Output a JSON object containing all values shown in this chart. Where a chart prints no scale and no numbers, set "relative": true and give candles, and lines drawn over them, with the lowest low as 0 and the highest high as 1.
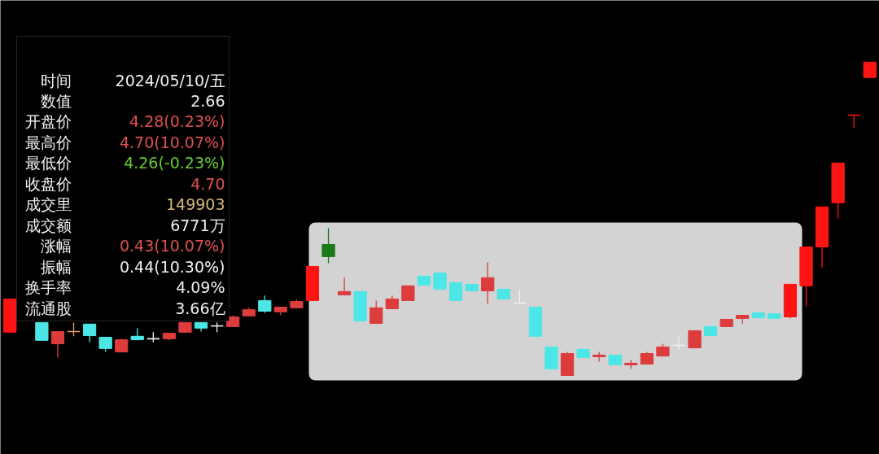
{
  "chart_data": {
    "type": "candlestick",
    "relative": true,
    "categories": [
      null,
      null,
      null,
      null,
      null,
      null,
      null,
      null,
      null,
      null,
      null,
      null,
      null,
      null,
      null,
      null,
      null,
      null,
      null,
      null,
      null,
      null,
      null,
      null,
      null,
      null,
      null,
      null,
      null,
      null,
      null,
      null,
      null,
      null,
      null,
      null,
      null,
      null,
      null,
      null,
      null,
      null,
      null,
      null,
      null,
      null,
      null,
      null,
      null,
      null,
      null,
      null,
      null,
      null,
      null
    ],
    "ohlc": [
      [
        0.138,
        0.244,
        0.138,
        0.244
      ],
      null,
      [
        0.169,
        0.169,
        0.112,
        0.112
      ],
      [
        0.101,
        0.14,
        0.057,
        0.14
      ],
      [
        0.14,
        0.169,
        0.125,
        0.14
      ],
      [
        0.164,
        0.164,
        0.106,
        0.127
      ],
      [
        0.122,
        0.122,
        0.075,
        0.086
      ],
      [
        0.075,
        0.117,
        0.075,
        0.114
      ],
      [
        0.125,
        0.151,
        0.112,
        0.114
      ],
      [
        0.117,
        0.138,
        0.106,
        0.117
      ],
      [
        0.117,
        0.135,
        0.112,
        0.135
      ],
      [
        0.138,
        0.169,
        0.135,
        0.169
      ],
      [
        0.169,
        0.169,
        0.14,
        0.151
      ],
      [
        0.158,
        0.169,
        0.138,
        0.158
      ],
      [
        0.156,
        0.192,
        0.156,
        0.187
      ],
      [
        0.19,
        0.216,
        0.19,
        0.21
      ],
      [
        0.239,
        0.255,
        0.2,
        0.205
      ],
      [
        0.203,
        0.218,
        0.192,
        0.218
      ],
      [
        0.216,
        0.242,
        0.216,
        0.236
      ],
      [
        0.239,
        0.348,
        0.239,
        0.348
      ],
      [
        0.418,
        0.47,
        0.358,
        0.379
      ],
      [
        0.257,
        0.312,
        0.257,
        0.268
      ],
      [
        0.268,
        0.268,
        0.174,
        0.174
      ],
      [
        0.166,
        0.239,
        0.166,
        0.216
      ],
      [
        0.213,
        0.255,
        0.213,
        0.244
      ],
      [
        0.239,
        0.286,
        0.239,
        0.286
      ],
      [
        0.317,
        0.317,
        0.288,
        0.288
      ],
      [
        0.327,
        0.327,
        0.275,
        0.275
      ],
      [
        0.296,
        0.296,
        0.239,
        0.239
      ],
      [
        0.291,
        0.291,
        0.27,
        0.27
      ],
      [
        0.27,
        0.361,
        0.229,
        0.312
      ],
      [
        0.275,
        0.275,
        0.244,
        0.244
      ],
      [
        0.231,
        0.273,
        0.231,
        0.231
      ],
      [
        0.218,
        0.218,
        0.125,
        0.125
      ],
      [
        0.091,
        0.091,
        0.021,
        0.021
      ],
      [
        0.0,
        0.075,
        0.0,
        0.07
      ],
      [
        0.083,
        0.083,
        0.057,
        0.057
      ],
      [
        0.06,
        0.075,
        0.044,
        0.065
      ],
      [
        0.065,
        0.065,
        0.034,
        0.034
      ],
      [
        0.034,
        0.049,
        0.021,
        0.039
      ],
      [
        0.036,
        0.075,
        0.036,
        0.07
      ],
      [
        0.062,
        0.101,
        0.062,
        0.091
      ],
      [
        0.096,
        0.125,
        0.081,
        0.096
      ],
      [
        0.088,
        0.143,
        0.088,
        0.143
      ],
      [
        0.156,
        0.156,
        0.127,
        0.127
      ],
      [
        0.156,
        0.179,
        0.156,
        0.179
      ],
      [
        0.182,
        0.192,
        0.164,
        0.192
      ],
      [
        0.2,
        0.2,
        0.184,
        0.184
      ],
      [
        0.197,
        0.197,
        0.182,
        0.182
      ],
      [
        0.187,
        0.291,
        0.182,
        0.291
      ],
      [
        0.286,
        0.41,
        0.221,
        0.41
      ],
      [
        0.41,
        0.538,
        0.345,
        0.538
      ],
      [
        0.551,
        0.678,
        0.501,
        0.678
      ],
      [
        0.831,
        0.831,
        0.79,
        0.831
      ],
      [
        0.951,
        1.0,
        0.951,
        1.0
      ]
    ],
    "colors": [
      "#ff1414",
      null,
      "#4de6e6",
      "#dc3c3c",
      "#e8a06a",
      "#4de6e6",
      "#4de6e6",
      "#dc3c3c",
      "#4de6e6",
      "#f0f0f0",
      "#dc3c3c",
      "#dc3c3c",
      "#4de6e6",
      "#f0f0f0",
      "#dc3c3c",
      "#dc3c3c",
      "#4de6e6",
      "#dc3c3c",
      "#dc3c3c",
      "#ff1414",
      "#1a7a1a",
      "#dc3c3c",
      "#4de6e6",
      "#dc3c3c",
      "#dc3c3c",
      "#dc3c3c",
      "#4de6e6",
      "#4de6e6",
      "#4de6e6",
      "#4de6e6",
      "#dc3c3c",
      "#4de6e6",
      "#f0f0f0",
      "#4de6e6",
      "#4de6e6",
      "#dc3c3c",
      "#4de6e6",
      "#dc3c3c",
      "#4de6e6",
      "#dc3c3c",
      "#dc3c3c",
      "#dc3c3c",
      "#f0f0f0",
      "#dc3c3c",
      "#4de6e6",
      "#dc3c3c",
      "#dc3c3c",
      "#4de6e6",
      "#4de6e6",
      "#ff1414",
      "#ff1414",
      "#ff1414",
      "#ff1414",
      "#ff1414",
      "#ff1414"
    ],
    "annotations": [
      "时间",
      "2024/05/10/五",
      "数值",
      "2.66",
      "开盘价",
      "4.28(0.23%)",
      "最高价",
      "4.70(10.07%)",
      "最低价",
      "4.26(-0.23%)",
      "收盘价",
      "4.70",
      "成交里",
      "149903",
      "成交额",
      "6771万",
      "涨幅",
      "0.43(10.07%)",
      "振幅",
      "0.44(10.30%)",
      "换手率",
      "4.09%",
      "流通股",
      "3.66亿"
    ]
  }
}
